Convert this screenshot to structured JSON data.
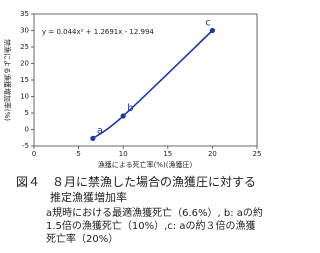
{
  "chart_data": {
    "type": "scatter",
    "equation": "y = 0.044x² + 1.2691x - 12.994",
    "x_label": "漁獲による死亡率(%)(漁獲圧)",
    "y_label": "禁漁による漁獲増加率(%)",
    "x": [
      6.6,
      10,
      20
    ],
    "values": [
      -2.7,
      4.1,
      30
    ],
    "point_labels": [
      "a",
      "b",
      "c"
    ],
    "color": "#1f3a9a",
    "line": true,
    "xlim": [
      0,
      25
    ],
    "xticks": [
      0,
      5,
      10,
      15,
      20,
      25
    ],
    "ylim": [
      -5,
      35
    ],
    "yticks": [
      -5,
      0,
      5,
      10,
      15,
      20,
      25,
      30,
      35
    ]
  },
  "caption": {
    "title": "図４　８月に禁漁した場合の漁獲圧に対する",
    "title2": "推定漁獲増加率",
    "lines": [
      "a規時における最適漁獲死亡（6.6%）, b: aの約",
      "1.5倍の漁獲死亡（10%）,c: aの約３倍の漁獲",
      "死亡率（20%）"
    ]
  }
}
